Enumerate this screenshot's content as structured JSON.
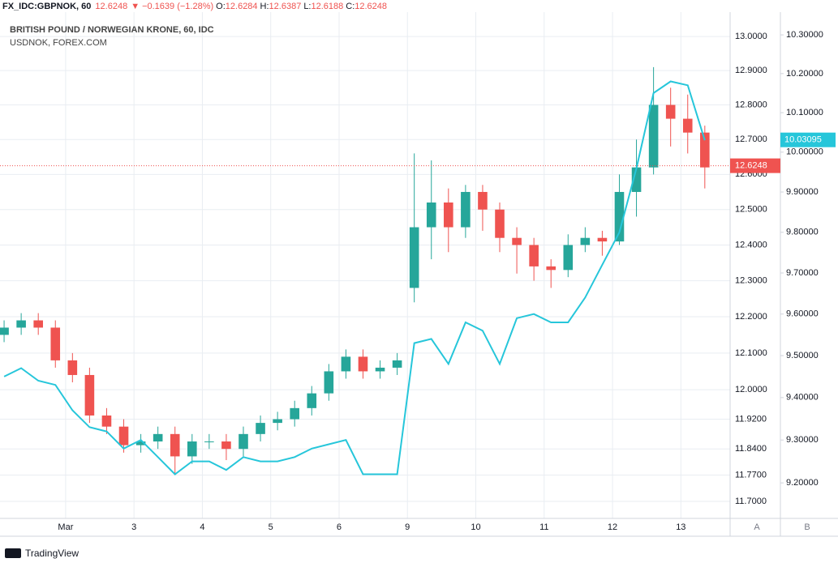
{
  "chart_data": {
    "type": "candlestick",
    "symbol": "FX_IDC:GBPNOK, 60",
    "header_last": 12.6248,
    "change_arrow": "▼",
    "change": "−0.1639 (−1.28%)",
    "ohlc_labels": [
      "O:",
      "H:",
      "L:",
      "C:"
    ],
    "ohlc_values": [
      12.6284,
      12.6387,
      12.6188,
      12.6248
    ],
    "title": "BRITISH POUND / NORWEGIAN KRONE, 60, IDC",
    "x": [
      0.1,
      0.35,
      0.6,
      0.85,
      1.1,
      1.35,
      1.6,
      1.85,
      2.1,
      2.35,
      2.6,
      2.85,
      3.1,
      3.35,
      3.6,
      3.85,
      4.1,
      4.35,
      4.6,
      4.85,
      5.1,
      5.35,
      5.6,
      5.85,
      6.1,
      6.35,
      6.6,
      6.85,
      7.1,
      7.35,
      7.6,
      7.85,
      8.1,
      8.35,
      8.6,
      8.85,
      9.1,
      9.35,
      9.6,
      9.85,
      10.1,
      10.35
    ],
    "open": [
      12.15,
      12.17,
      12.19,
      12.17,
      12.08,
      12.04,
      11.93,
      11.9,
      11.85,
      11.86,
      11.88,
      11.82,
      11.86,
      11.86,
      11.84,
      11.88,
      11.91,
      11.92,
      11.95,
      11.99,
      12.05,
      12.09,
      12.05,
      12.06,
      12.28,
      12.45,
      12.52,
      12.45,
      12.55,
      12.5,
      12.42,
      12.4,
      12.34,
      12.33,
      12.4,
      12.42,
      12.41,
      12.55,
      12.62,
      12.8,
      12.76,
      12.72
    ],
    "high": [
      12.19,
      12.21,
      12.21,
      12.19,
      12.1,
      12.06,
      11.95,
      11.92,
      11.88,
      11.9,
      11.9,
      11.88,
      11.88,
      11.88,
      11.9,
      11.93,
      11.94,
      11.97,
      12.01,
      12.07,
      12.11,
      12.11,
      12.08,
      12.1,
      12.66,
      12.64,
      12.56,
      12.57,
      12.57,
      12.52,
      12.45,
      12.42,
      12.36,
      12.43,
      12.45,
      12.44,
      12.6,
      12.7,
      12.91,
      12.85,
      12.83,
      12.74
    ],
    "low": [
      12.13,
      12.15,
      12.15,
      12.06,
      12.02,
      11.91,
      11.88,
      11.83,
      11.83,
      11.84,
      11.77,
      11.8,
      11.84,
      11.81,
      11.82,
      11.86,
      11.89,
      11.9,
      11.93,
      11.97,
      12.03,
      12.03,
      12.03,
      12.04,
      12.24,
      12.36,
      12.38,
      12.42,
      12.44,
      12.38,
      12.32,
      12.3,
      12.28,
      12.31,
      12.38,
      12.37,
      12.4,
      12.48,
      12.6,
      12.68,
      12.66,
      12.56
    ],
    "close": [
      12.17,
      12.19,
      12.17,
      12.08,
      12.04,
      11.93,
      11.9,
      11.85,
      11.86,
      11.88,
      11.82,
      11.86,
      11.86,
      11.84,
      11.88,
      11.91,
      11.92,
      11.95,
      11.99,
      12.05,
      12.09,
      12.05,
      12.06,
      12.08,
      12.45,
      12.52,
      12.45,
      12.55,
      12.5,
      12.42,
      12.4,
      12.34,
      12.33,
      12.4,
      12.42,
      12.41,
      12.55,
      12.62,
      12.8,
      12.76,
      12.72,
      12.62
    ],
    "up_color": "#26a69a",
    "down_color": "#ef5350",
    "series": [
      {
        "name": "USDNOK, FOREX.COM",
        "color": "#26c6da",
        "axis": "y2",
        "values": [
          9.45,
          9.47,
          9.44,
          9.43,
          9.37,
          9.33,
          9.32,
          9.28,
          9.3,
          9.26,
          9.22,
          9.25,
          9.25,
          9.23,
          9.26,
          9.25,
          9.25,
          9.26,
          9.28,
          9.29,
          9.3,
          9.22,
          9.22,
          9.22,
          9.53,
          9.54,
          9.48,
          9.58,
          9.56,
          9.48,
          9.59,
          9.6,
          9.58,
          9.58,
          9.64,
          9.72,
          9.8,
          9.96,
          10.15,
          10.18,
          10.17,
          10.03
        ]
      }
    ],
    "last_price": 12.6248,
    "last_price2": 10.03095,
    "log_scale": true,
    "xlim": [
      0.04,
      10.72
    ],
    "xticks": [
      {
        "value": 1,
        "label": "Mar"
      },
      {
        "value": 2,
        "label": "3"
      },
      {
        "value": 3,
        "label": "4"
      },
      {
        "value": 4,
        "label": "5"
      },
      {
        "value": 5,
        "label": "6"
      },
      {
        "value": 6,
        "label": "9"
      },
      {
        "value": 7,
        "label": "10"
      },
      {
        "value": 8,
        "label": "11"
      },
      {
        "value": 9,
        "label": "12"
      },
      {
        "value": 10,
        "label": "13"
      }
    ],
    "ylim": [
      11.655,
      13.108
    ],
    "yticks": [
      {
        "value": 11.7,
        "label": "11.7000"
      },
      {
        "value": 11.77,
        "label": "11.7700"
      },
      {
        "value": 11.84,
        "label": "11.8400"
      },
      {
        "value": 11.92,
        "label": "11.9200"
      },
      {
        "value": 12,
        "label": "12.0000"
      },
      {
        "value": 12.1,
        "label": "12.1000"
      },
      {
        "value": 12.2,
        "label": "12.2000"
      },
      {
        "value": 12.3,
        "label": "12.3000"
      },
      {
        "value": 12.4,
        "label": "12.4000"
      },
      {
        "value": 12.5,
        "label": "12.5000"
      },
      {
        "value": 12.6,
        "label": "12.6000"
      },
      {
        "value": 12.7,
        "label": "12.7000"
      },
      {
        "value": 12.8,
        "label": "12.8000"
      },
      {
        "value": 12.9,
        "label": "12.9000"
      },
      {
        "value": 13,
        "label": "13.0000"
      }
    ],
    "y2lim": [
      9.118,
      10.391
    ],
    "y2ticks": [
      {
        "value": 9.2,
        "label": "9.20000"
      },
      {
        "value": 9.3,
        "label": "9.30000"
      },
      {
        "value": 9.4,
        "label": "9.40000"
      },
      {
        "value": 9.5,
        "label": "9.50000"
      },
      {
        "value": 9.6,
        "label": "9.60000"
      },
      {
        "value": 9.7,
        "label": "9.70000"
      },
      {
        "value": 9.8,
        "label": "9.80000"
      },
      {
        "value": 9.9,
        "label": "9.90000"
      },
      {
        "value": 10,
        "label": "10.00000"
      },
      {
        "value": 10.1,
        "label": "10.10000"
      },
      {
        "value": 10.2,
        "label": "10.20000"
      },
      {
        "value": 10.3,
        "label": "10.30000"
      }
    ],
    "grid": true,
    "scale_buttons": [
      "A",
      "B"
    ],
    "brand": "TradingView"
  }
}
